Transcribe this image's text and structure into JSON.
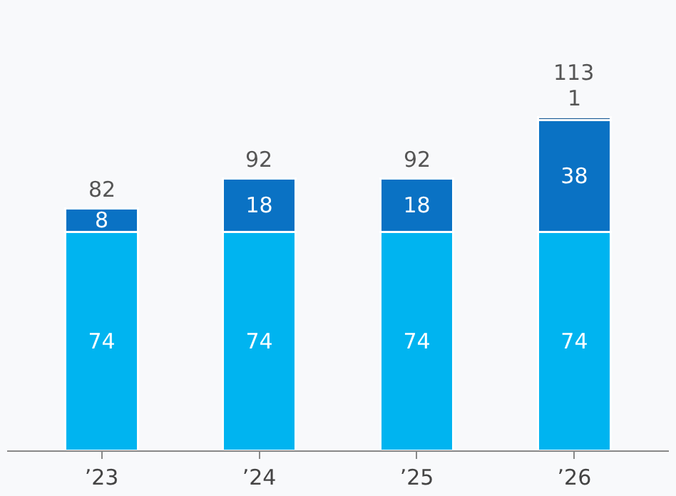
{
  "chart_data": {
    "type": "bar",
    "stacked": true,
    "categories": [
      "’23",
      "’24",
      "’25",
      "’26"
    ],
    "series": [
      {
        "color": "#00b4f0",
        "values": [
          74,
          74,
          74,
          74
        ]
      },
      {
        "color": "#0a72c4",
        "values": [
          8,
          18,
          18,
          38
        ]
      },
      {
        "color": "#0b4f8e",
        "values": [
          null,
          null,
          null,
          1
        ]
      }
    ],
    "data_labels": true,
    "totals": [
      "82",
      "92",
      "92",
      "113"
    ]
  }
}
